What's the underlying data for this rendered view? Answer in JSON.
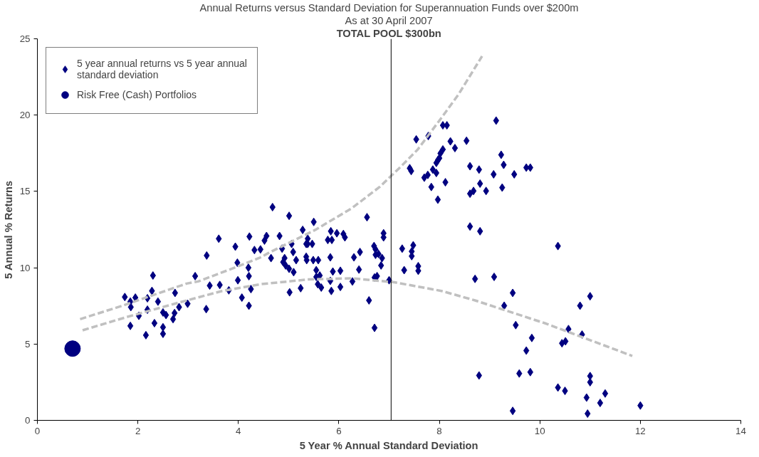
{
  "chart_data": {
    "type": "scatter",
    "title": "Annual Returns versus Standard Deviation for Superannuation Funds over $200m",
    "subtitle": "As at 30 April 2007",
    "annotations": [
      "TOTAL POOL $300bn"
    ],
    "xlabel": "5 Year % Annual Standard Deviation",
    "ylabel": "5 Annual % Returns",
    "xlim": [
      0,
      14
    ],
    "xticks": [
      0,
      2,
      4,
      6,
      8,
      10,
      12,
      14
    ],
    "ylim": [
      0,
      25
    ],
    "yticks": [
      0,
      5,
      10,
      15,
      20,
      25
    ],
    "grid": false,
    "legend": "top left",
    "ref_lines": [
      {
        "axis": "x",
        "value": 7.04,
        "color": "#000000"
      }
    ],
    "series": [
      {
        "name": "5 year annual returns vs 5 year annual standard deviation",
        "color": "#000080",
        "marker": "diamond",
        "x": [
          1.74,
          1.85,
          1.86,
          1.85,
          1.95,
          2.02,
          2.19,
          2.16,
          2.19,
          2.28,
          2.3,
          2.33,
          2.4,
          2.5,
          2.5,
          2.5,
          2.56,
          2.7,
          2.73,
          2.74,
          2.82,
          2.99,
          3.14,
          3.36,
          3.43,
          3.37,
          3.63,
          3.61,
          3.81,
          3.94,
          3.98,
          3.99,
          4.07,
          4.21,
          4.2,
          4.21,
          4.25,
          4.32,
          4.22,
          4.44,
          4.52,
          4.56,
          4.68,
          4.65,
          4.82,
          4.87,
          4.92,
          4.89,
          4.94,
          5.01,
          5.01,
          5.06,
          5.09,
          5.1,
          5.15,
          5.02,
          5.24,
          5.28,
          5.35,
          5.35,
          5.38,
          5.38,
          5.36,
          5.5,
          5.47,
          5.49,
          5.55,
          5.59,
          5.55,
          5.58,
          5.62,
          5.65,
          5.78,
          5.83,
          5.83,
          5.88,
          5.85,
          5.86,
          5.84,
          5.96,
          6.03,
          6.03,
          6.09,
          6.12,
          6.27,
          6.4,
          6.3,
          6.42,
          6.56,
          6.6,
          6.7,
          6.73,
          6.79,
          6.71,
          6.76,
          6.84,
          6.86,
          6.89,
          6.89,
          6.71,
          6.73,
          7.0,
          7.26,
          7.3,
          7.45,
          7.45,
          7.48,
          7.58,
          7.58,
          7.41,
          7.44,
          7.54,
          7.7,
          7.77,
          7.94,
          7.87,
          7.94,
          8.0,
          7.97,
          8.02,
          8.07,
          7.84,
          7.97,
          7.78,
          8.07,
          8.15,
          8.22,
          8.31,
          8.12,
          8.54,
          8.61,
          8.68,
          8.61,
          8.79,
          8.81,
          8.93,
          9.08,
          9.13,
          9.23,
          9.28,
          9.25,
          9.49,
          9.73,
          9.81,
          8.61,
          8.81,
          9.09,
          8.71,
          9.29,
          9.46,
          9.52,
          9.84,
          9.73,
          8.79,
          9.59,
          9.81,
          9.46,
          10.36,
          10.57,
          10.8,
          11.0,
          10.84,
          10.44,
          10.51,
          10.36,
          10.5,
          11.0,
          11.0,
          11.3,
          10.93,
          11.2,
          12.0,
          10.95
        ],
        "values": [
          8.08,
          7.78,
          7.42,
          6.19,
          8.04,
          6.85,
          7.25,
          5.58,
          8.0,
          8.48,
          9.49,
          6.37,
          7.78,
          5.67,
          6.1,
          7.07,
          6.9,
          6.63,
          7.03,
          8.35,
          7.42,
          7.64,
          9.45,
          7.29,
          8.83,
          10.8,
          8.87,
          11.9,
          8.52,
          11.38,
          10.33,
          9.18,
          8.04,
          9.45,
          10.0,
          7.51,
          8.6,
          11.16,
          12.04,
          11.2,
          11.78,
          12.08,
          13.97,
          10.63,
          12.08,
          11.25,
          10.63,
          10.37,
          10.15,
          9.93,
          13.4,
          11.56,
          11.03,
          9.71,
          10.5,
          8.39,
          8.66,
          12.48,
          11.56,
          10.72,
          11.56,
          11.9,
          10.5,
          13.0,
          11.56,
          10.5,
          9.84,
          10.5,
          9.4,
          8.92,
          9.49,
          8.7,
          11.82,
          9.14,
          10.68,
          9.75,
          8.48,
          11.82,
          12.39,
          12.26,
          9.8,
          8.74,
          12.21,
          11.99,
          9.1,
          9.88,
          10.68,
          11.03,
          13.31,
          7.86,
          11.42,
          11.2,
          10.9,
          6.06,
          9.45,
          10.15,
          10.63,
          12.26,
          11.99,
          9.36,
          10.85,
          9.18,
          11.25,
          9.84,
          11.07,
          10.76,
          11.47,
          10.1,
          9.8,
          16.52,
          16.34,
          18.41,
          15.9,
          16.08,
          16.21,
          16.43,
          16.87,
          17.18,
          17.05,
          17.49,
          17.75,
          15.29,
          14.46,
          18.63,
          19.33,
          19.33,
          18.28,
          17.84,
          15.6,
          18.32,
          16.65,
          15.03,
          14.85,
          16.43,
          15.51,
          15.03,
          16.12,
          19.64,
          17.4,
          16.74,
          15.25,
          16.12,
          16.56,
          16.56,
          12.7,
          12.39,
          9.4,
          9.27,
          7.51,
          8.35,
          6.24,
          5.4,
          4.57,
          2.94,
          3.07,
          3.16,
          0.62,
          11.42,
          5.98,
          7.51,
          8.13,
          5.62,
          5.05,
          5.18,
          2.15,
          1.93,
          2.9,
          2.5,
          1.76,
          1.49,
          1.14,
          0.97,
          0.44
        ]
      },
      {
        "name": "Risk Free (Cash) Portfolios",
        "color": "#000080",
        "marker": "circle",
        "x": [
          0.7
        ],
        "values": [
          4.7
        ]
      },
      {
        "type": "line",
        "color": "#c0c0c0",
        "line_style": "dashed",
        "marker": "none",
        "x": [
          0.85,
          1.69,
          2.97,
          3.2,
          3.97,
          4.44,
          4.62,
          5.53,
          6.25,
          6.81,
          7.24,
          7.57,
          8.07,
          8.38,
          8.85
        ],
        "values": [
          6.63,
          7.51,
          8.96,
          9.1,
          10.06,
          10.68,
          11.0,
          12.48,
          13.88,
          15.29,
          16.65,
          17.75,
          19.95,
          21.35,
          23.86
        ]
      },
      {
        "type": "line",
        "color": "#c0c0c0",
        "line_style": "dashed",
        "marker": "none",
        "x": [
          0.9,
          1.78,
          2.73,
          3.68,
          4.44,
          5.39,
          6.25,
          7.1,
          8.04,
          8.71,
          10.13,
          11.84
        ],
        "values": [
          5.9,
          6.77,
          7.64,
          8.48,
          8.92,
          9.23,
          9.31,
          9.05,
          8.48,
          7.86,
          6.33,
          4.22
        ]
      }
    ]
  }
}
